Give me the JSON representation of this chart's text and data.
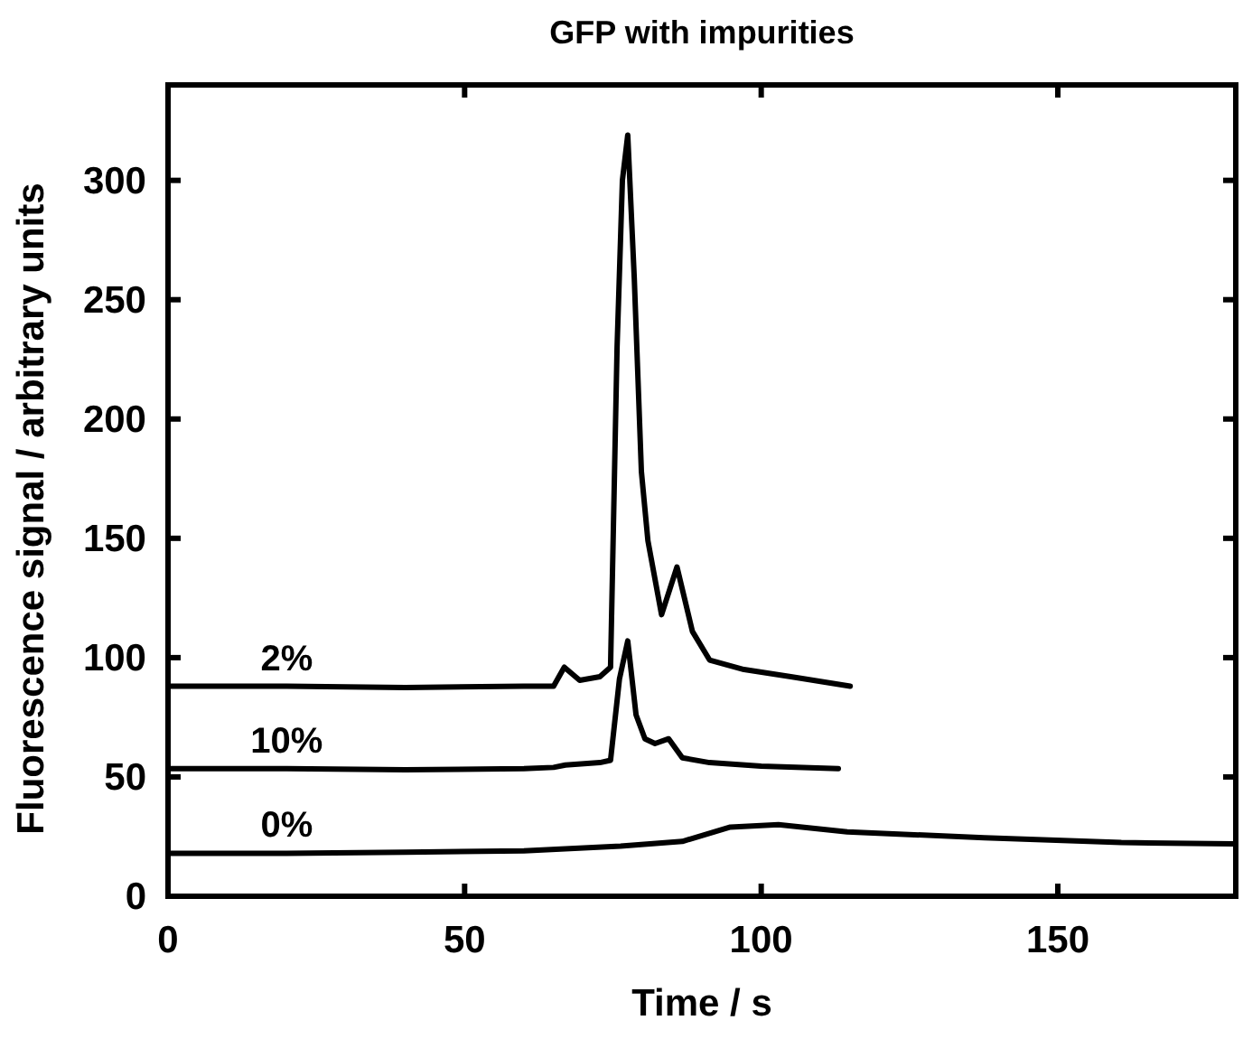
{
  "chart_data": {
    "type": "line",
    "title": "GFP with impurities",
    "xlabel": "Time / s",
    "ylabel": "Fluorescence signal / arbitrary units",
    "xlim": [
      0,
      180
    ],
    "xticks": [
      0,
      50,
      100,
      150
    ],
    "ylim": [
      0,
      340
    ],
    "yticks": [
      0,
      50,
      100,
      150,
      200,
      250,
      300
    ],
    "grid": false,
    "marker": "none",
    "line_style": "solid",
    "series": [
      {
        "name": "2%",
        "color": "#000000",
        "x": [
          0,
          20,
          40,
          60,
          65,
          66.8,
          69.4,
          72.8,
          74.6,
          75.7,
          76.6,
          77.5,
          78.6,
          79.8,
          80.9,
          83.2,
          85.8,
          88.4,
          91.3,
          97.1,
          105,
          115
        ],
        "values": [
          88,
          88,
          87.5,
          88,
          88,
          96,
          90.5,
          92,
          96,
          230,
          300,
          319,
          259,
          178,
          149,
          118,
          138,
          111,
          99,
          95,
          92,
          88
        ]
      },
      {
        "name": "10%",
        "color": "#000000",
        "x": [
          0,
          20,
          40,
          60,
          65,
          67,
          72.8,
          74.6,
          76.1,
          77.5,
          78.9,
          80.4,
          82.1,
          84.4,
          86.7,
          91.3,
          100,
          113
        ],
        "values": [
          53.5,
          53.5,
          53,
          53.5,
          54,
          55,
          56,
          57,
          91,
          107,
          76,
          66,
          64,
          66,
          58,
          56,
          54.5,
          53.5
        ]
      },
      {
        "name": "0%",
        "color": "#000000",
        "x": [
          0,
          20,
          40,
          60,
          76.3,
          86.7,
          94.8,
          102.9,
          114.5,
          137.6,
          160.7,
          179.5
        ],
        "values": [
          18,
          18,
          18.5,
          19,
          21,
          23,
          29,
          30,
          27,
          24.5,
          22.5,
          22
        ]
      }
    ]
  }
}
